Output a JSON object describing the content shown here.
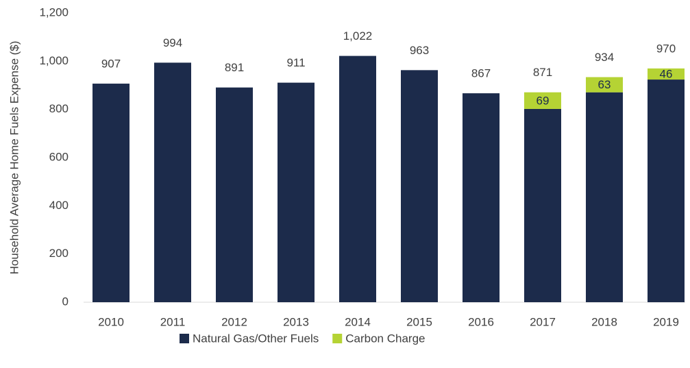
{
  "chart_data": {
    "type": "stacked-bar",
    "y_axis_label": "Household Average Home Fuels Expense ($)",
    "categories": [
      "2010",
      "2011",
      "2012",
      "2013",
      "2014",
      "2015",
      "2016",
      "2017",
      "2018",
      "2019"
    ],
    "series": [
      {
        "name": "Natural Gas/Other Fuels",
        "color": "#1c2b4b",
        "values": [
          907,
          994,
          891,
          911,
          1022,
          963,
          867,
          802,
          871,
          924
        ]
      },
      {
        "name": "Carbon Charge",
        "color": "#b5d334",
        "values": [
          null,
          null,
          null,
          null,
          null,
          null,
          null,
          69,
          63,
          46
        ]
      }
    ],
    "totals": {
      "values": [
        907,
        994,
        891,
        911,
        1022,
        963,
        867,
        871,
        934,
        970
      ],
      "value_labels": [
        "907",
        "994",
        "891",
        "911",
        "1,022",
        "963",
        "867",
        "871",
        "934",
        "970"
      ]
    },
    "ylim": [
      0,
      1200
    ],
    "yticks": [
      0,
      200,
      400,
      600,
      800,
      {
        "value": 1000,
        "label": "1,000"
      },
      {
        "value": 1200,
        "label": "1,200"
      }
    ],
    "grid": false,
    "legend": "bottom"
  }
}
